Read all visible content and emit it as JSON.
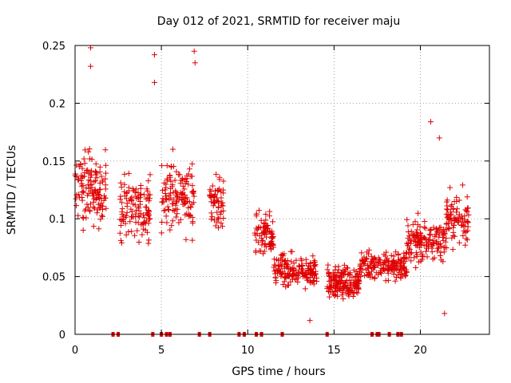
{
  "chart_data": {
    "type": "scatter",
    "title": "Day 012 of 2021, SRMTID for receiver maju",
    "xlabel": "GPS time / hours",
    "ylabel": "SRMTID / TECUs",
    "xlim": [
      0,
      24
    ],
    "ylim": [
      0,
      0.25
    ],
    "x_ticks": [
      0,
      5,
      10,
      15,
      20
    ],
    "x_tick_labels": [
      "0",
      "5",
      "10",
      "15",
      "20"
    ],
    "y_ticks": [
      0,
      0.05,
      0.1,
      0.15,
      0.2,
      0.25
    ],
    "y_tick_labels": [
      "0",
      "0.05",
      "0.1",
      "0.15",
      "0.2",
      "0.25"
    ],
    "grid": true,
    "marker": "plus",
    "color": "#e00000",
    "series": [
      {
        "name": "SRMTID",
        "clusters": [
          {
            "x_start": 0.0,
            "x_end": 1.8,
            "y_center": 0.125,
            "y_spread": 0.05,
            "count": 130
          },
          {
            "x_start": 2.6,
            "x_end": 4.4,
            "y_center": 0.11,
            "y_spread": 0.045,
            "count": 120
          },
          {
            "x_start": 5.0,
            "x_end": 6.9,
            "y_center": 0.12,
            "y_spread": 0.05,
            "count": 130
          },
          {
            "x_start": 7.8,
            "x_end": 8.6,
            "y_center": 0.115,
            "y_spread": 0.035,
            "count": 60
          },
          {
            "x_start": 10.4,
            "x_end": 11.5,
            "y_center": 0.085,
            "y_spread": 0.03,
            "count": 80
          },
          {
            "x_start": 11.5,
            "x_end": 14.0,
            "y_center": 0.055,
            "y_spread": 0.022,
            "count": 170
          },
          {
            "x_start": 14.6,
            "x_end": 16.5,
            "y_center": 0.045,
            "y_spread": 0.02,
            "count": 170
          },
          {
            "x_start": 16.5,
            "x_end": 19.2,
            "y_center": 0.06,
            "y_spread": 0.022,
            "count": 170
          },
          {
            "x_start": 19.2,
            "x_end": 21.5,
            "y_center": 0.08,
            "y_spread": 0.028,
            "count": 150
          },
          {
            "x_start": 21.5,
            "x_end": 22.8,
            "y_center": 0.1,
            "y_spread": 0.035,
            "count": 90
          }
        ],
        "outliers": [
          {
            "x": 0.9,
            "y": 0.248
          },
          {
            "x": 0.9,
            "y": 0.232
          },
          {
            "x": 4.6,
            "y": 0.242
          },
          {
            "x": 4.6,
            "y": 0.218
          },
          {
            "x": 6.9,
            "y": 0.245
          },
          {
            "x": 6.95,
            "y": 0.235
          },
          {
            "x": 20.6,
            "y": 0.184
          },
          {
            "x": 21.1,
            "y": 0.17
          },
          {
            "x": 13.6,
            "y": 0.012
          },
          {
            "x": 21.4,
            "y": 0.018
          }
        ],
        "zero_values_x": [
          2.2,
          2.5,
          4.5,
          5.0,
          5.3,
          5.5,
          7.2,
          7.8,
          9.5,
          9.8,
          10.5,
          10.8,
          12.0,
          14.6,
          17.2,
          17.5,
          17.6,
          18.2,
          18.7,
          18.9
        ]
      }
    ]
  }
}
